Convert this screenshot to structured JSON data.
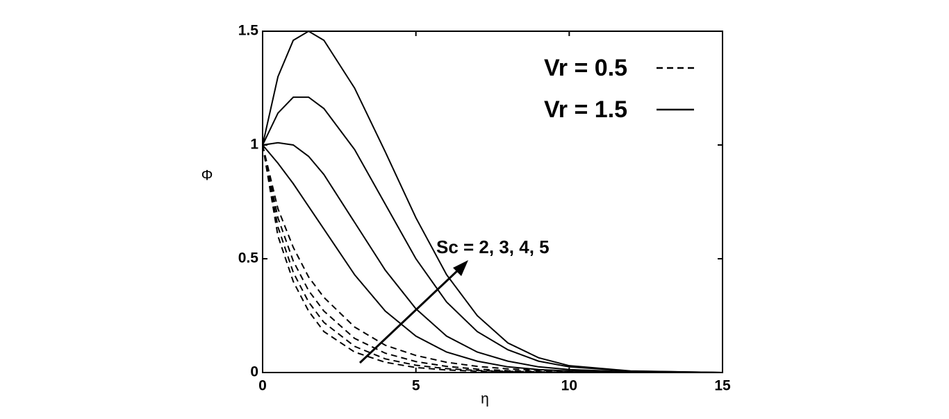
{
  "chart_data": {
    "type": "line",
    "xlabel": "η",
    "ylabel": "Φ",
    "annotation": "Sc = 2, 3, 4, 5",
    "xlim": [
      0,
      15
    ],
    "xticks": [
      0,
      5,
      10,
      15
    ],
    "ylim": [
      0,
      1.5
    ],
    "yticks": [
      0,
      0.5,
      1,
      1.5
    ],
    "color": "#000000",
    "legend_position": "upper right",
    "legend": [
      {
        "label": "Vr = 0.5",
        "style": "dashed"
      },
      {
        "label": "Vr = 1.5",
        "style": "solid"
      }
    ],
    "x": [
      0,
      0.5,
      1,
      1.5,
      2,
      3,
      4,
      5,
      6,
      7,
      8,
      9,
      10,
      12,
      15
    ],
    "series": [
      {
        "style": "dashed",
        "values": [
          1,
          0.72,
          0.55,
          0.42,
          0.33,
          0.2,
          0.12,
          0.075,
          0.045,
          0.027,
          0.016,
          0.01,
          0.006,
          0.002,
          0
        ]
      },
      {
        "style": "dashed",
        "values": [
          1,
          0.68,
          0.49,
          0.36,
          0.27,
          0.15,
          0.085,
          0.048,
          0.027,
          0.015,
          0.008,
          0.005,
          0.003,
          0.001,
          0
        ]
      },
      {
        "style": "dashed",
        "values": [
          1,
          0.64,
          0.44,
          0.31,
          0.22,
          0.115,
          0.06,
          0.032,
          0.017,
          0.009,
          0.005,
          0.003,
          0.001,
          0,
          0
        ]
      },
      {
        "style": "dashed",
        "values": [
          1,
          0.6,
          0.4,
          0.27,
          0.18,
          0.09,
          0.045,
          0.022,
          0.011,
          0.006,
          0.003,
          0.001,
          0,
          0,
          0
        ]
      },
      {
        "style": "solid",
        "values": [
          1,
          0.92,
          0.83,
          0.73,
          0.63,
          0.43,
          0.27,
          0.16,
          0.09,
          0.05,
          0.025,
          0.013,
          0.007,
          0.002,
          0
        ]
      },
      {
        "style": "solid",
        "values": [
          1,
          1.01,
          1.0,
          0.95,
          0.87,
          0.66,
          0.45,
          0.28,
          0.16,
          0.09,
          0.05,
          0.025,
          0.013,
          0.003,
          0
        ]
      },
      {
        "style": "solid",
        "values": [
          1,
          1.14,
          1.21,
          1.21,
          1.16,
          0.98,
          0.74,
          0.5,
          0.31,
          0.18,
          0.1,
          0.05,
          0.025,
          0.006,
          0
        ]
      },
      {
        "style": "solid",
        "values": [
          1,
          1.3,
          1.46,
          1.5,
          1.46,
          1.25,
          0.97,
          0.68,
          0.43,
          0.25,
          0.13,
          0.065,
          0.03,
          0.007,
          0
        ]
      }
    ]
  }
}
